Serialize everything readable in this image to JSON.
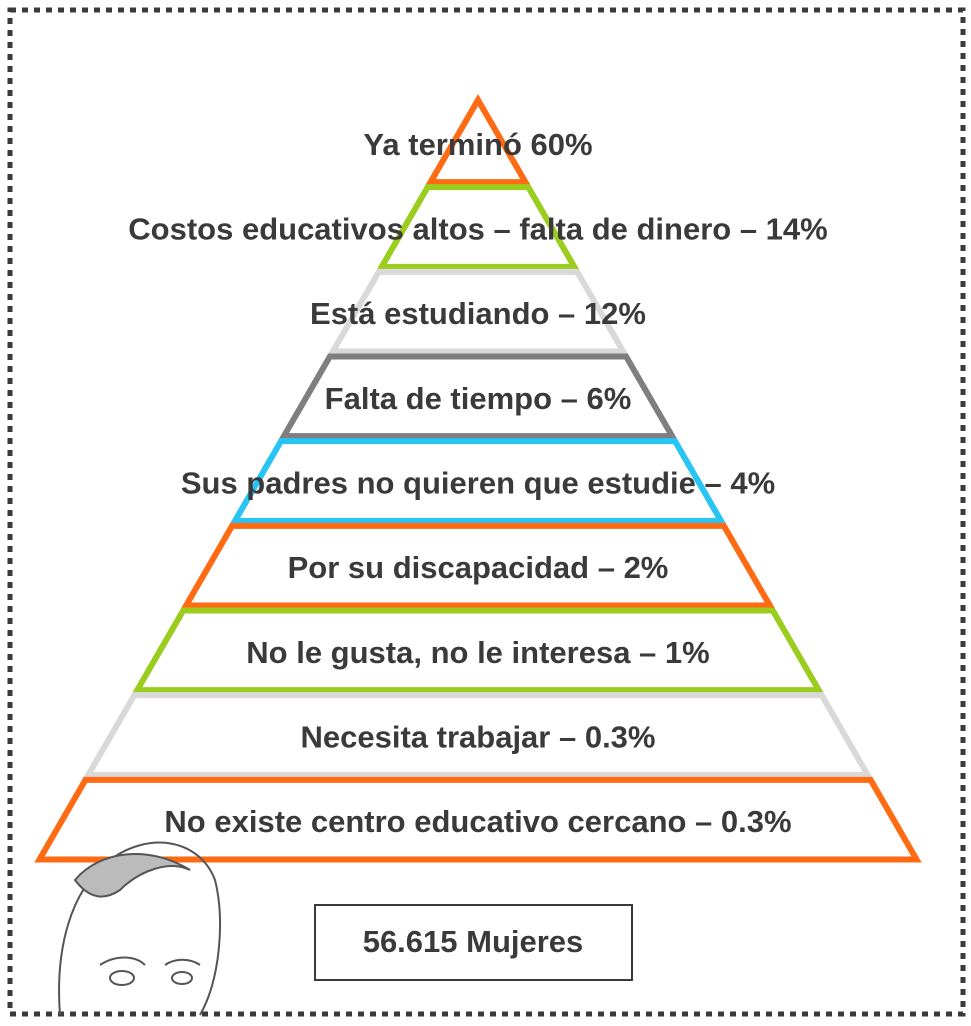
{
  "levels": [
    {
      "label": "Ya terminó 60%",
      "color": "#ff6a13"
    },
    {
      "label": "Costos educativos altos – falta de dinero – 14%",
      "color": "#9acd1e"
    },
    {
      "label": "Está estudiando – 12%",
      "color": "#d9d9d9"
    },
    {
      "label": "Falta de tiempo – 6%",
      "color": "#7f7f7f"
    },
    {
      "label": "Sus padres no quieren que estudie – 4%",
      "color": "#27c4f4"
    },
    {
      "label": "Por su discapacidad – 2%",
      "color": "#ff6a13"
    },
    {
      "label": "No le gusta, no le interesa – 1%",
      "color": "#9acd1e"
    },
    {
      "label": "Necesita trabajar – 0.3%",
      "color": "#d9d9d9"
    },
    {
      "label": "No existe centro educativo cercano – 0.3%",
      "color": "#ff6a13"
    }
  ],
  "footer": {
    "label": "56.615 Mujeres"
  }
}
